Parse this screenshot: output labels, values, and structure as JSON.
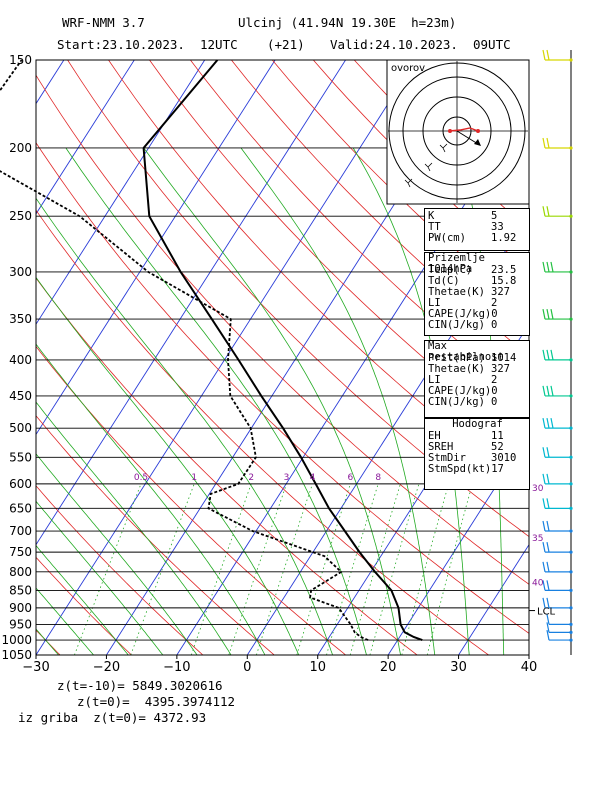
{
  "header": {
    "model": "WRF-NMM 3.7",
    "location": "Ulcinj (41.94N 19.30E  h=23m)",
    "start": "Start:23.10.2023.  12UTC",
    "lead": "(+21)",
    "valid": "Valid:24.10.2023.  09UTC"
  },
  "hodograph": {
    "label": "ovorov"
  },
  "indices": {
    "block1": [
      {
        "k": "K",
        "v": "5"
      },
      {
        "k": "TT",
        "v": "33"
      },
      {
        "k": "PW(cm)",
        "v": "1.92"
      }
    ],
    "surface_title": "Prizemlje 1014hPa",
    "surface": [
      {
        "k": "Temp(C)",
        "v": "23.5"
      },
      {
        "k": "Td(C)",
        "v": "15.8"
      },
      {
        "k": "Thetae(K)",
        "v": "327"
      },
      {
        "k": "LI",
        "v": "2"
      },
      {
        "k": "CAPE(J/kg)",
        "v": "0"
      },
      {
        "k": "CIN(J/kg)",
        "v": "0"
      }
    ],
    "unstable_title": "Max nestabilnost",
    "unstable": [
      {
        "k": "Prit(hPa)",
        "v": "1014"
      },
      {
        "k": "Thetae(K)",
        "v": "327"
      },
      {
        "k": "LI",
        "v": "2"
      },
      {
        "k": "CAPE(J/kg)",
        "v": "0"
      },
      {
        "k": "CIN(J/kg)",
        "v": "0"
      }
    ],
    "hodo_title": "Hodograf",
    "hodo": [
      {
        "k": "EH",
        "v": "11"
      },
      {
        "k": "SREH",
        "v": "52"
      },
      {
        "k": "StmDir",
        "v": "3010"
      },
      {
        "k": "StmSpd(kt)",
        "v": "17"
      }
    ]
  },
  "footer": {
    "line1": "z(t=-10)= 5849.3020616",
    "line2": "z(t=0)=  4395.3974112",
    "line3": "iz griba  z(t=0)= 4372.93"
  },
  "chart_data": {
    "type": "skew-t log-p",
    "xlim": [
      -30,
      40
    ],
    "ylim_hPa": [
      1050,
      150
    ],
    "x_ticks": [
      -30,
      -20,
      -10,
      0,
      10,
      20,
      30,
      40
    ],
    "x_tick_labels": [
      "−30",
      "−20",
      "−10",
      "0",
      "10",
      "20",
      "30",
      "40"
    ],
    "pressure_ticks": [
      150,
      200,
      250,
      300,
      350,
      400,
      450,
      500,
      550,
      600,
      650,
      700,
      750,
      800,
      850,
      900,
      950,
      1000,
      1050
    ],
    "mixing_ratio_labels": [
      "0.5",
      "1",
      "2",
      "3",
      "4",
      "6",
      "8"
    ],
    "height_labels_km": [
      "30",
      "35",
      "40"
    ],
    "lcl_label": "LCL",
    "temperature": {
      "p": [
        1000,
        990,
        975,
        950,
        900,
        850,
        800,
        750,
        700,
        650,
        600,
        550,
        500,
        450,
        400,
        350,
        300,
        250,
        200,
        150
      ],
      "t": [
        23.5,
        22.0,
        20.3,
        19.0,
        17.2,
        14.6,
        10.6,
        6.6,
        2.6,
        -1.7,
        -5.8,
        -10.3,
        -15.5,
        -21.5,
        -28.0,
        -35.5,
        -44.2,
        -53.7,
        -60.7,
        -58.2
      ]
    },
    "dewpoint": {
      "p": [
        1000,
        990,
        975,
        950,
        900,
        870,
        850,
        800,
        760,
        700,
        650,
        620,
        600,
        550,
        500,
        450,
        400,
        350,
        300,
        250,
        200,
        150
      ],
      "td": [
        15.8,
        14.5,
        13.2,
        11.9,
        8.7,
        3.7,
        3.2,
        5.8,
        2.0,
        -10.5,
        -18.8,
        -19.8,
        -16.8,
        -16.7,
        -20.1,
        -25.9,
        -29.5,
        -32.8,
        -48.8,
        -63.6,
        -86.9,
        -86.0
      ]
    },
    "wind_pressures": [
      150,
      200,
      250,
      300,
      350,
      400,
      450,
      500,
      550,
      600,
      650,
      700,
      750,
      800,
      850,
      900,
      950,
      975,
      1000
    ]
  }
}
